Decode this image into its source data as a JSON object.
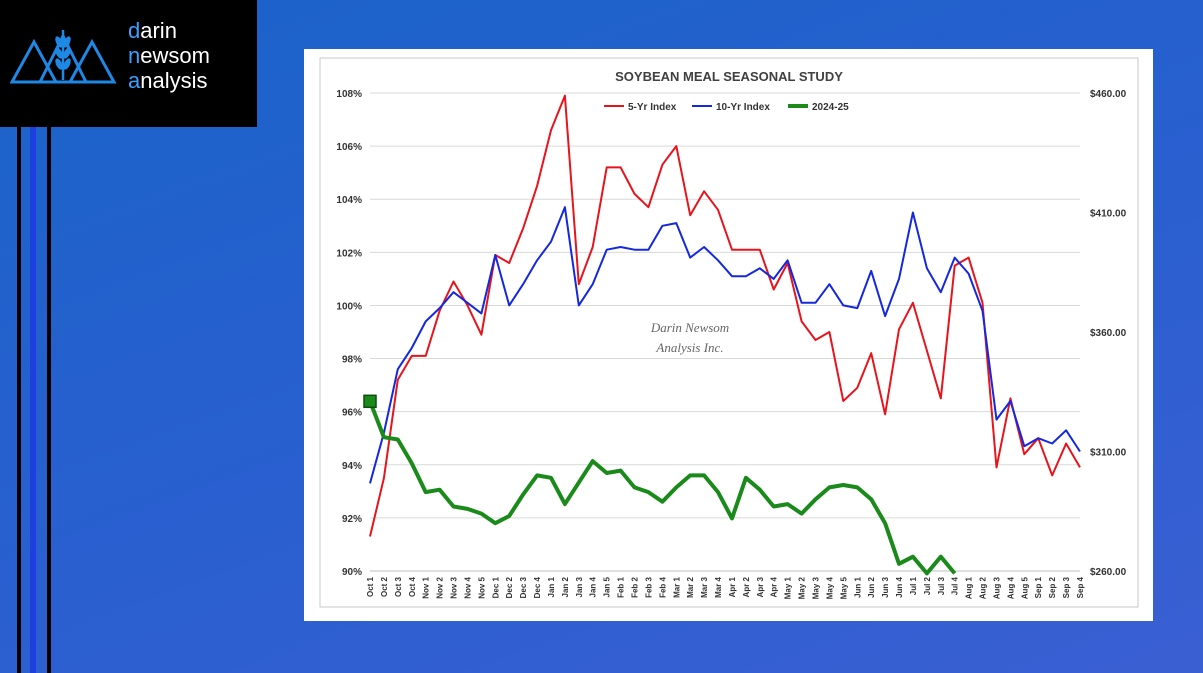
{
  "brand": {
    "line1_hl": "d",
    "line1_rest": "arin",
    "line2_hl": "n",
    "line2_mid": "ew",
    "line2_rest": "som",
    "line3_hl": "a",
    "line3_rest": "nalysis",
    "accent_color": "#3aa0ff"
  },
  "chart_data": {
    "type": "line",
    "title": "SOYBEAN MEAL SEASONAL STUDY",
    "watermark": [
      "Darin Newsom",
      "Analysis Inc."
    ],
    "x": [
      "Oct 1",
      "Oct 2",
      "Oct 3",
      "Oct 4",
      "Nov 1",
      "Nov 2",
      "Nov 3",
      "Nov 4",
      "Nov 5",
      "Dec 1",
      "Dec 2",
      "Dec 3",
      "Dec 4",
      "Jan 1",
      "Jan 2",
      "Jan 3",
      "Jan 4",
      "Jan 5",
      "Feb 1",
      "Feb 2",
      "Feb 3",
      "Feb 4",
      "Mar 1",
      "Mar 2",
      "Mar 3",
      "Mar 4",
      "Apr 1",
      "Apr 2",
      "Apr 3",
      "Apr 4",
      "May 1",
      "May 2",
      "May 3",
      "May 4",
      "May 5",
      "Jun 1",
      "Jun 2",
      "Jun 3",
      "Jun 4",
      "Jul 1",
      "Jul 2",
      "Jul 3",
      "Jul 4",
      "Aug 1",
      "Aug 2",
      "Aug 3",
      "Aug 4",
      "Aug 5",
      "Sep 1",
      "Sep 2",
      "Sep 3",
      "Sep 4"
    ],
    "y_left": {
      "ticks": [
        "90%",
        "92%",
        "94%",
        "96%",
        "98%",
        "100%",
        "102%",
        "104%",
        "106%",
        "108%"
      ],
      "range": [
        90,
        108
      ]
    },
    "y_right": {
      "ticks": [
        "$260.00",
        "$310.00",
        "$360.00",
        "$410.00",
        "$460.00"
      ],
      "range": [
        260,
        460
      ]
    },
    "grid": "horizontal",
    "legend_position": "top",
    "series": [
      {
        "name": "5-Yr Index",
        "color": "#e8141c",
        "axis": "left",
        "values": [
          91.3,
          93.5,
          97.2,
          98.1,
          98.1,
          99.8,
          100.9,
          100.0,
          98.9,
          101.9,
          101.6,
          102.9,
          104.5,
          106.6,
          107.9,
          100.8,
          102.2,
          105.2,
          105.2,
          104.2,
          103.7,
          105.3,
          106.0,
          103.4,
          104.3,
          103.6,
          102.1,
          102.1,
          102.1,
          100.6,
          101.6,
          99.4,
          98.7,
          99.0,
          96.4,
          96.9,
          98.2,
          95.9,
          99.1,
          100.1,
          98.3,
          96.5,
          101.5,
          101.8,
          100.1,
          93.9,
          96.5,
          94.4,
          95.0,
          93.6,
          94.8,
          93.9
        ]
      },
      {
        "name": "10-Yr Index",
        "color": "#1428e0",
        "axis": "left",
        "values": [
          93.3,
          95.2,
          97.6,
          98.4,
          99.4,
          99.9,
          100.5,
          100.1,
          99.7,
          101.9,
          100.0,
          100.8,
          101.7,
          102.4,
          103.7,
          100.0,
          100.8,
          102.1,
          102.2,
          102.1,
          102.1,
          103.0,
          103.1,
          101.8,
          102.2,
          101.7,
          101.1,
          101.1,
          101.4,
          101.0,
          101.7,
          100.1,
          100.1,
          100.8,
          100.0,
          99.9,
          101.3,
          99.6,
          101.0,
          103.5,
          101.4,
          100.5,
          101.8,
          101.2,
          99.8,
          95.7,
          96.4,
          94.7,
          95.0,
          94.8,
          95.3,
          94.5
        ]
      },
      {
        "name": "2024-25",
        "color": "#1a8a1a",
        "axis": "right",
        "values": [
          331,
          316,
          315,
          305,
          293,
          294,
          287,
          286,
          284,
          280,
          283,
          292,
          300,
          299,
          288,
          297,
          306,
          301,
          302,
          295,
          293,
          289,
          295,
          300,
          300,
          293,
          282,
          299,
          294,
          287,
          288,
          284,
          290,
          295,
          296,
          295,
          290,
          280,
          263,
          266,
          259,
          266,
          259,
          null,
          null,
          null,
          null,
          null,
          null,
          null,
          null,
          null
        ]
      }
    ]
  }
}
